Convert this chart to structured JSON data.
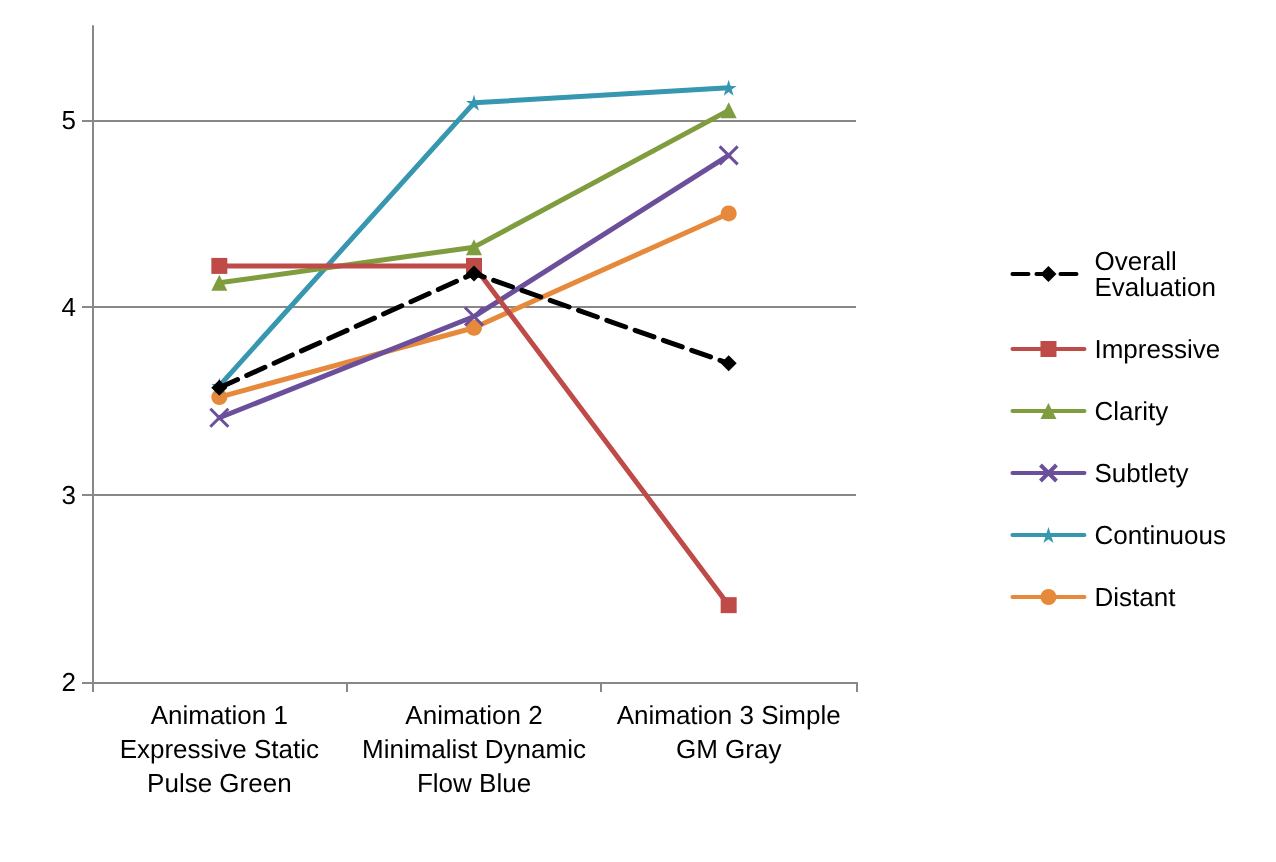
{
  "chart_data": {
    "type": "line",
    "categories": [
      "Animation 1\nExpressive Static\nPulse Green",
      "Animation 2\nMinimalist Dynamic\nFlow Blue",
      "Animation 3 Simple\nGM Gray"
    ],
    "series": [
      {
        "name": "Overall\nEvaluation",
        "color": "#000000",
        "values": [
          3.57,
          4.18,
          3.7
        ],
        "marker": "diamond",
        "line_style": "dashed"
      },
      {
        "name": "Impressive",
        "color": "#be4b48",
        "values": [
          4.22,
          4.22,
          2.41
        ],
        "marker": "square",
        "line_style": "solid"
      },
      {
        "name": "Clarity",
        "color": "#7f9d3f",
        "values": [
          4.13,
          4.32,
          5.05
        ],
        "marker": "triangle",
        "line_style": "solid"
      },
      {
        "name": "Subtlety",
        "color": "#6b4f9a",
        "values": [
          3.41,
          3.95,
          4.81
        ],
        "marker": "cross",
        "line_style": "solid"
      },
      {
        "name": "Continuous",
        "color": "#3796b0",
        "values": [
          3.58,
          5.09,
          5.17
        ],
        "marker": "star",
        "line_style": "solid"
      },
      {
        "name": "Distant",
        "color": "#e6893b",
        "values": [
          3.52,
          3.89,
          4.5
        ],
        "marker": "circle",
        "line_style": "solid"
      }
    ],
    "ylim": [
      2,
      5.5
    ],
    "yticks": [
      2,
      3,
      4,
      5
    ],
    "grid": "y",
    "legend": "right"
  }
}
